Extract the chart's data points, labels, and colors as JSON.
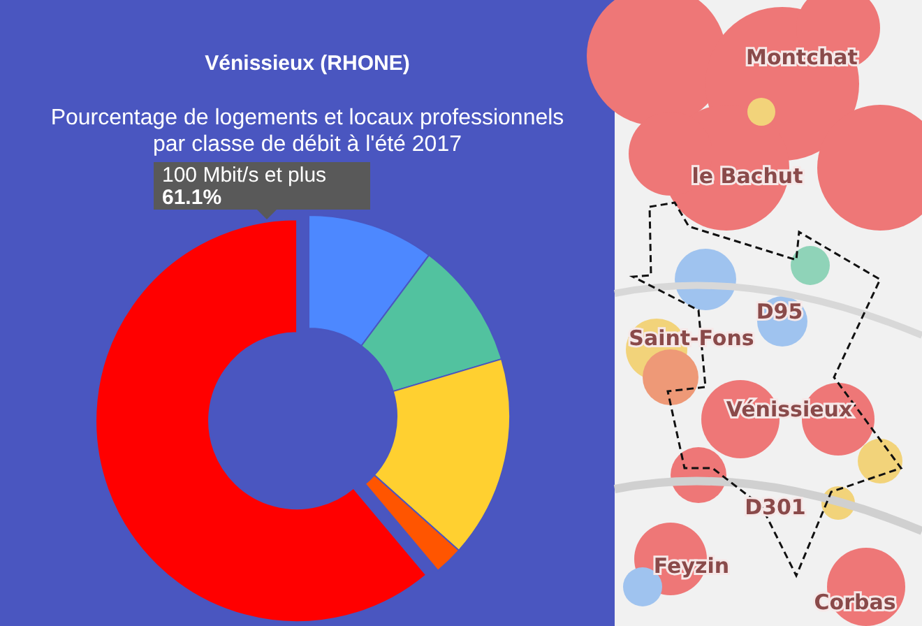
{
  "chart_data": {
    "type": "donut",
    "title": "Vénissieux (RHONE)",
    "subtitle": "Pourcentage de logements et locaux professionnels par classe de débit à l'été 2017",
    "categories": [
      null,
      null,
      null,
      null,
      "100 Mbit/s et plus"
    ],
    "values": [
      10.2,
      10.2,
      16.2,
      2.3,
      61.1
    ],
    "colors": [
      "#4d88ff",
      "#52c29f",
      "#ffd030",
      "#ff5500",
      "#ff0000"
    ],
    "value_labels": [
      null,
      null,
      null,
      null,
      "61.1%"
    ],
    "annotations": [
      "Montchat",
      "le Bachut",
      "Saint-Fons",
      "D95",
      "Vénissieux",
      "D301",
      "Feyzin",
      "Corbas"
    ]
  }
}
